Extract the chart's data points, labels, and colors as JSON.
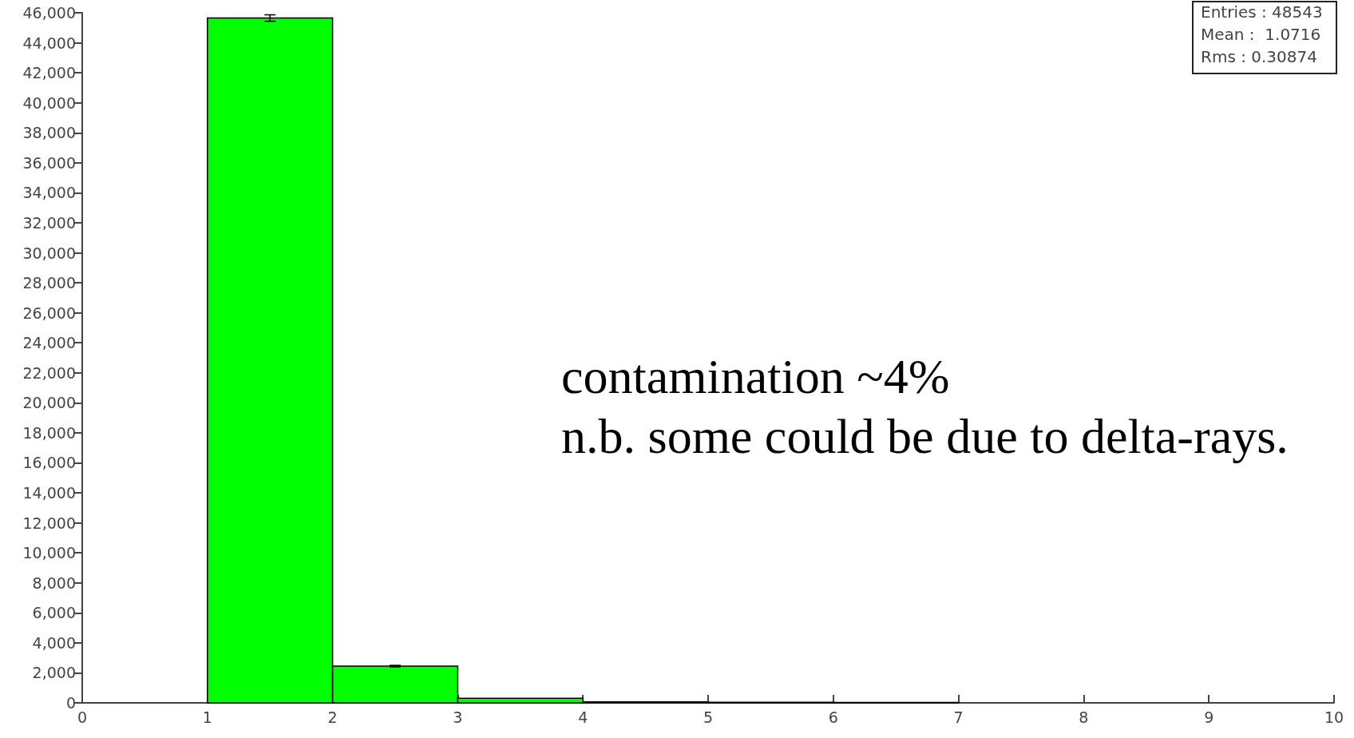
{
  "chart_data": {
    "type": "histogram",
    "color": "#00ff00",
    "bins": [
      1,
      2,
      3,
      4,
      5,
      6,
      7
    ],
    "values": [
      45650,
      2450,
      300,
      60,
      40,
      30
    ],
    "errors": [
      214,
      50,
      null,
      null,
      null,
      null
    ],
    "xlim": [
      0,
      10
    ],
    "xticks": [
      0,
      1,
      2,
      3,
      4,
      5,
      6,
      7,
      8,
      9,
      10
    ],
    "ylim": [
      0,
      46000
    ],
    "yticks": [
      0,
      {
        "value": 2000,
        "label": "2,000"
      },
      {
        "value": 4000,
        "label": "4,000"
      },
      {
        "value": 6000,
        "label": "6,000"
      },
      {
        "value": 8000,
        "label": "8,000"
      },
      {
        "value": 10000,
        "label": "10,000"
      },
      {
        "value": 12000,
        "label": "12,000"
      },
      {
        "value": 14000,
        "label": "14,000"
      },
      {
        "value": 16000,
        "label": "16,000"
      },
      {
        "value": 18000,
        "label": "18,000"
      },
      {
        "value": 20000,
        "label": "20,000"
      },
      {
        "value": 22000,
        "label": "22,000"
      },
      {
        "value": 24000,
        "label": "24,000"
      },
      {
        "value": 26000,
        "label": "26,000"
      },
      {
        "value": 28000,
        "label": "28,000"
      },
      {
        "value": 30000,
        "label": "30,000"
      },
      {
        "value": 32000,
        "label": "32,000"
      },
      {
        "value": 34000,
        "label": "34,000"
      },
      {
        "value": 36000,
        "label": "36,000"
      },
      {
        "value": 38000,
        "label": "38,000"
      },
      {
        "value": 40000,
        "label": "40,000"
      },
      {
        "value": 42000,
        "label": "42,000"
      },
      {
        "value": 44000,
        "label": "44,000"
      },
      {
        "value": 46000,
        "label": "46,000"
      }
    ],
    "grid": false,
    "legend": false,
    "annotations": [
      "Entries : 48543",
      "Mean :  1.0716",
      "Rms : 0.30874",
      "contamination ~4%",
      "n.b. some could be due to delta-rays."
    ]
  }
}
